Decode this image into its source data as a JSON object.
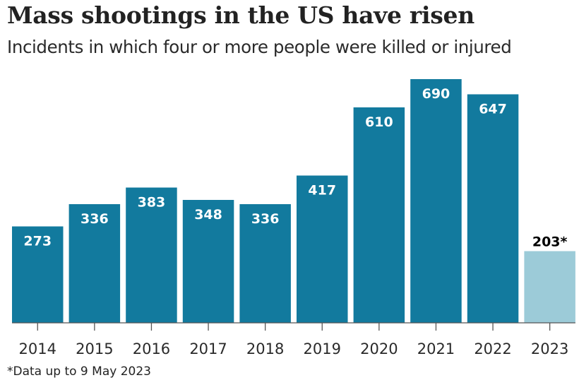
{
  "chart_data": {
    "type": "bar",
    "title": "Mass shootings in the US have risen",
    "subtitle": "Incidents in which four or more people were killed or injured",
    "categories": [
      "2014",
      "2015",
      "2016",
      "2017",
      "2018",
      "2019",
      "2020",
      "2021",
      "2022",
      "2023"
    ],
    "values": [
      273,
      336,
      383,
      348,
      336,
      417,
      610,
      690,
      647,
      203
    ],
    "data_labels": [
      "273",
      "336",
      "383",
      "348",
      "336",
      "417",
      "610",
      "690",
      "647",
      "203*"
    ],
    "partial": [
      false,
      false,
      false,
      false,
      false,
      false,
      false,
      false,
      false,
      true
    ],
    "xlabel": "",
    "ylabel": "",
    "ylim": [
      0,
      690
    ],
    "grid": false,
    "legend": "none",
    "colors": {
      "full_year": "#127a9e",
      "partial_year": "#9ccbd8",
      "label_inside": "#ffffff",
      "label_outside": "#000000",
      "axis": "#555555"
    },
    "footnote": "*Data up to 9 May 2023"
  }
}
